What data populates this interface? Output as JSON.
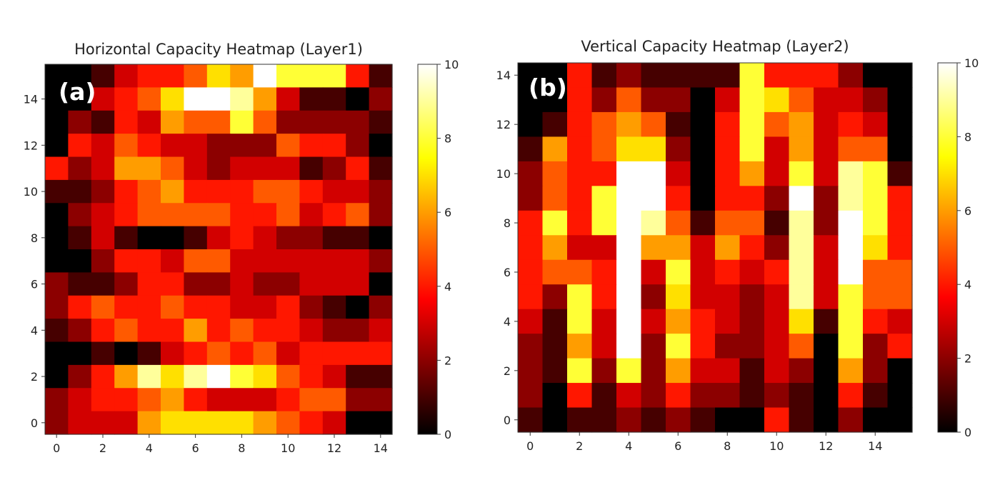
{
  "chart_data": [
    {
      "type": "heatmap",
      "title": "Horizontal Capacity Heatmap (Layer1)",
      "panel_label": "(a)",
      "x_ticks": [
        "0",
        "2",
        "4",
        "6",
        "8",
        "10",
        "12",
        "14"
      ],
      "y_ticks": [
        "0",
        "2",
        "4",
        "6",
        "8",
        "10",
        "12",
        "14"
      ],
      "colorbar_ticks": [
        "0",
        "2",
        "4",
        "6",
        "8",
        "10"
      ],
      "colormap": "hot",
      "vmin": 0,
      "vmax": 10,
      "xlim": [
        -0.5,
        14.5
      ],
      "ylim": [
        -0.5,
        15.5
      ],
      "origin": "lower",
      "grid": false,
      "rows_top_to_bottom": [
        [
          0,
          0,
          1,
          3,
          4,
          4,
          5,
          7,
          6,
          10,
          8,
          8,
          8,
          4,
          1
        ],
        [
          0,
          0,
          3,
          4,
          5,
          7,
          10,
          10,
          9,
          6,
          3,
          1,
          1,
          0,
          2
        ],
        [
          0,
          2,
          1,
          4,
          3,
          6,
          5,
          5,
          8,
          5,
          2,
          2,
          2,
          2,
          1
        ],
        [
          0,
          4,
          3,
          5,
          4,
          3,
          3,
          2,
          2,
          2,
          5,
          4,
          4,
          2,
          0
        ],
        [
          4,
          2,
          3,
          6,
          6,
          5,
          3,
          2,
          3,
          3,
          3,
          1,
          2,
          4,
          1
        ],
        [
          1,
          1,
          2,
          4,
          5,
          6,
          4,
          4,
          4,
          5,
          5,
          4,
          3,
          3,
          2
        ],
        [
          0,
          2,
          3,
          4,
          5,
          5,
          5,
          5,
          4,
          4,
          5,
          3,
          4,
          5,
          2
        ],
        [
          0,
          1,
          3,
          1,
          0,
          0,
          1,
          3,
          4,
          3,
          2,
          2,
          1,
          1,
          0
        ],
        [
          0,
          0,
          2,
          4,
          4,
          3,
          5,
          5,
          3,
          3,
          3,
          3,
          3,
          3,
          2
        ],
        [
          2,
          1,
          1,
          2,
          4,
          4,
          2,
          2,
          3,
          2,
          2,
          3,
          3,
          3,
          0
        ],
        [
          2,
          4,
          5,
          4,
          4,
          5,
          4,
          4,
          3,
          3,
          4,
          2,
          1,
          0,
          2
        ],
        [
          1,
          2,
          4,
          5,
          4,
          4,
          6,
          4,
          5,
          4,
          4,
          3,
          2,
          2,
          3
        ],
        [
          0,
          0,
          1,
          0,
          1,
          3,
          4,
          5,
          4,
          5,
          3,
          4,
          4,
          4,
          4
        ],
        [
          0,
          2,
          4,
          6,
          9,
          7,
          9,
          10,
          8,
          7,
          5,
          4,
          3,
          1,
          1
        ],
        [
          2,
          3,
          4,
          4,
          5,
          6,
          4,
          3,
          3,
          3,
          4,
          5,
          5,
          2,
          2
        ],
        [
          2,
          3,
          3,
          3,
          6,
          7,
          7,
          7,
          7,
          6,
          5,
          4,
          3,
          0,
          0
        ]
      ]
    },
    {
      "type": "heatmap",
      "title": "Vertical Capacity Heatmap (Layer2)",
      "panel_label": "(b)",
      "x_ticks": [
        "0",
        "2",
        "4",
        "6",
        "8",
        "10",
        "12",
        "14"
      ],
      "y_ticks": [
        "0",
        "2",
        "4",
        "6",
        "8",
        "10",
        "12",
        "14"
      ],
      "colorbar_ticks": [
        "0",
        "2",
        "4",
        "6",
        "8",
        "10"
      ],
      "colormap": "hot",
      "vmin": 0,
      "vmax": 10,
      "xlim": [
        -0.5,
        15.5
      ],
      "ylim": [
        -0.5,
        14.5
      ],
      "origin": "lower",
      "grid": false,
      "rows_top_to_bottom": [
        [
          0,
          0,
          4,
          1,
          2,
          1,
          1,
          1,
          1,
          8,
          4,
          4,
          4,
          2,
          0,
          0
        ],
        [
          0,
          0,
          4,
          2,
          5,
          2,
          2,
          0,
          3,
          8,
          7,
          5,
          3,
          3,
          2,
          0
        ],
        [
          0,
          1,
          4,
          5,
          6,
          5,
          1,
          0,
          4,
          8,
          5,
          6,
          3,
          4,
          3,
          0
        ],
        [
          1,
          6,
          4,
          5,
          7,
          7,
          2,
          0,
          4,
          8,
          3,
          6,
          3,
          5,
          5,
          0
        ],
        [
          2,
          5,
          4,
          4,
          10,
          10,
          3,
          0,
          4,
          6,
          3,
          8,
          3,
          9,
          8,
          1
        ],
        [
          2,
          5,
          4,
          8,
          10,
          10,
          4,
          0,
          4,
          4,
          2,
          10,
          2,
          9,
          8,
          4
        ],
        [
          4,
          8,
          4,
          8,
          10,
          9,
          5,
          1,
          5,
          5,
          1,
          9,
          2,
          10,
          8,
          4
        ],
        [
          4,
          6,
          3,
          3,
          10,
          6,
          6,
          3,
          6,
          4,
          2,
          9,
          3,
          10,
          7,
          4
        ],
        [
          4,
          5,
          5,
          4,
          10,
          3,
          8,
          3,
          4,
          3,
          4,
          9,
          3,
          10,
          5,
          5
        ],
        [
          4,
          2,
          8,
          4,
          10,
          2,
          7,
          3,
          3,
          2,
          3,
          9,
          3,
          8,
          5,
          5
        ],
        [
          3,
          1,
          8,
          3,
          10,
          3,
          6,
          4,
          3,
          2,
          3,
          7,
          1,
          8,
          4,
          3
        ],
        [
          2,
          1,
          6,
          3,
          10,
          2,
          8,
          4,
          2,
          2,
          3,
          5,
          0,
          8,
          2,
          4
        ],
        [
          2,
          1,
          8,
          2,
          8,
          2,
          6,
          3,
          3,
          1,
          3,
          2,
          0,
          6,
          2,
          0
        ],
        [
          2,
          0,
          4,
          1,
          3,
          2,
          4,
          2,
          2,
          1,
          2,
          1,
          0,
          4,
          1,
          0
        ],
        [
          1,
          0,
          1,
          1,
          2,
          1,
          2,
          1,
          0,
          0,
          4,
          1,
          0,
          2,
          0,
          0
        ]
      ]
    }
  ]
}
